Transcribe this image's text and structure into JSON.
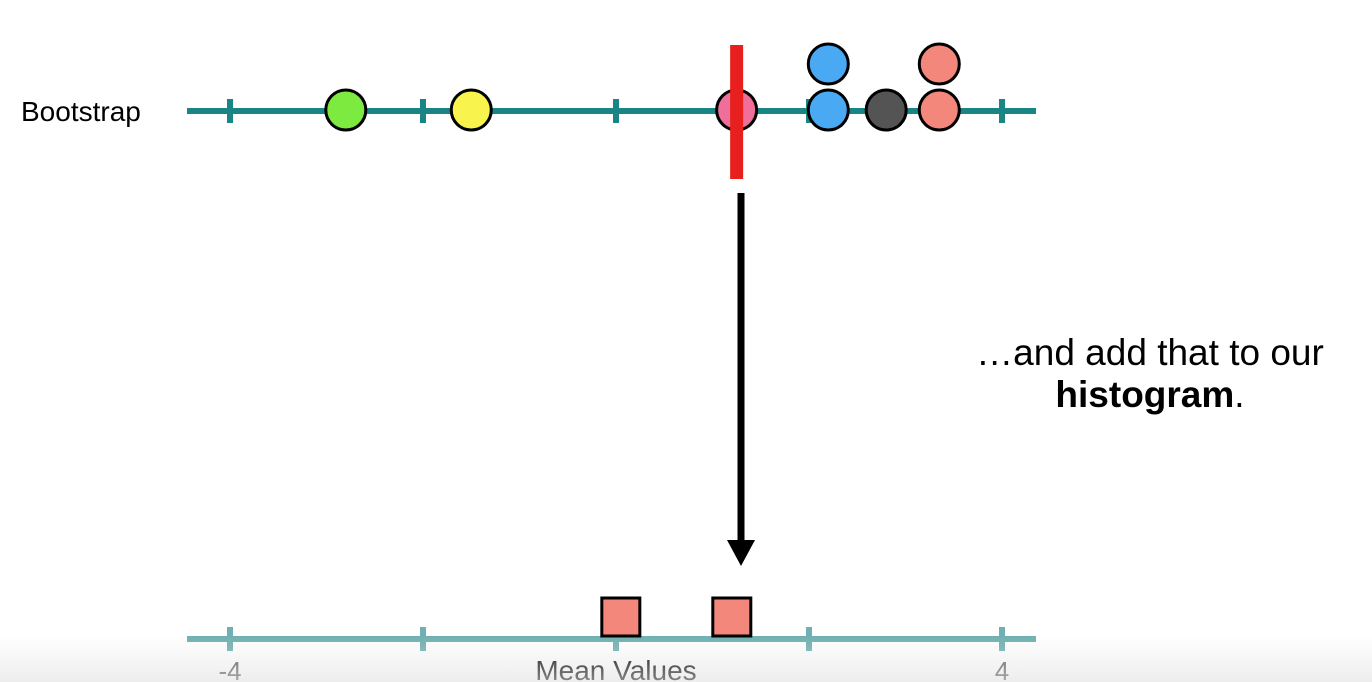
{
  "top_axis": {
    "label": "Bootstrap",
    "range": [
      -4,
      4
    ],
    "ticks": [
      -4,
      -2,
      0,
      2,
      4
    ],
    "color": "#1a8585"
  },
  "bootstrap_points": [
    {
      "x": -2.8,
      "stack": 0,
      "color": "#7dea3f"
    },
    {
      "x": -1.5,
      "stack": 0,
      "color": "#f9f34d"
    },
    {
      "x": 1.25,
      "stack": 0,
      "color": "#ef6f9a"
    },
    {
      "x": 2.2,
      "stack": 0,
      "color": "#4aa9f3"
    },
    {
      "x": 2.2,
      "stack": 1,
      "color": "#4aa9f3"
    },
    {
      "x": 2.8,
      "stack": 0,
      "color": "#545454"
    },
    {
      "x": 3.35,
      "stack": 0,
      "color": "#f4877c"
    },
    {
      "x": 3.35,
      "stack": 1,
      "color": "#f4877c"
    }
  ],
  "mean_marker": {
    "x": 1.25,
    "color": "#e8201d"
  },
  "bottom_axis": {
    "title": "Mean Values",
    "range": [
      -4,
      4
    ],
    "ticks": [
      -4,
      -2,
      0,
      2,
      4
    ],
    "tick_labels": [
      "-4",
      "",
      "",
      "",
      "4"
    ],
    "color": "#6fb1b1"
  },
  "histogram_boxes": [
    {
      "x": 0.05,
      "color": "#f4877c"
    },
    {
      "x": 1.2,
      "color": "#f4877c"
    }
  ],
  "caption": {
    "line1": "…and add that to our",
    "bold": "histogram",
    "suffix": "."
  }
}
